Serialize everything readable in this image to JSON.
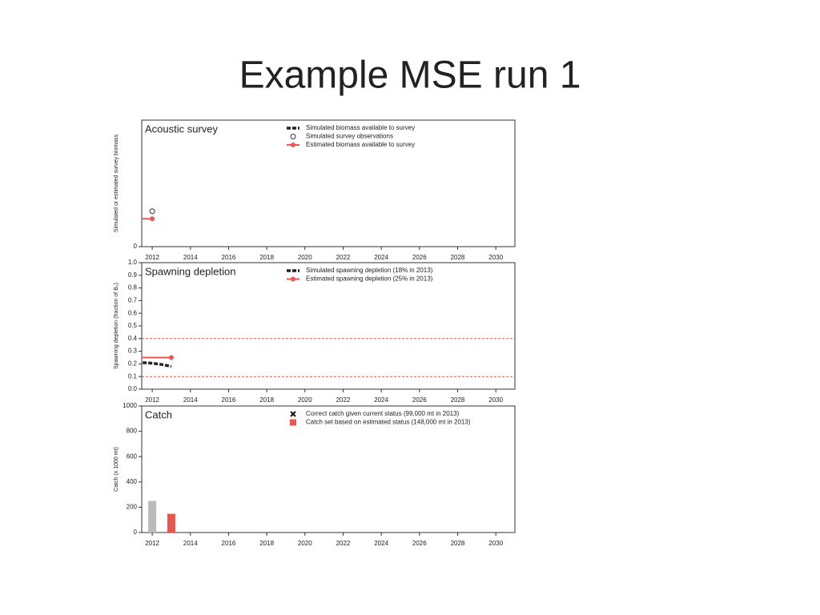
{
  "title": "Example MSE run 1",
  "chart_data": [
    {
      "type": "line",
      "title": "Acoustic survey",
      "ylabel": "Simulated or estimated survey biomass",
      "xlim": [
        2011.45,
        2031.0
      ],
      "xticks": [
        2012,
        2014,
        2016,
        2018,
        2020,
        2022,
        2024,
        2026,
        2028,
        2030
      ],
      "ylim": [
        0,
        1
      ],
      "yticks": [
        0
      ],
      "series": [
        {
          "name": "Simulated biomass available to survey",
          "style": "dashed-thick",
          "color": "#222222",
          "x": [
            2012
          ],
          "values": [
            0.24
          ]
        },
        {
          "name": "Simulated survey observations",
          "style": "open-point",
          "color": "#333333",
          "x": [
            2012
          ],
          "values": [
            0.28
          ]
        },
        {
          "name": "Estimated biomass available to survey",
          "style": "line-point",
          "color": "#e8584f",
          "x": [
            2011.45,
            2012
          ],
          "values": [
            0.22,
            0.22
          ]
        }
      ]
    },
    {
      "type": "line",
      "title": "Spawning depletion",
      "ylabel": "Spawning depletion (fraction of B₀)",
      "xlim": [
        2011.45,
        2031.0
      ],
      "xticks": [
        2012,
        2014,
        2016,
        2018,
        2020,
        2022,
        2024,
        2026,
        2028,
        2030
      ],
      "ylim": [
        0,
        1.0
      ],
      "yticks": [
        {
          "value": 0,
          "label": "0.0"
        },
        0.1,
        0.2,
        0.3,
        0.4,
        0.5,
        0.6,
        0.7,
        0.8,
        0.9,
        {
          "value": 1,
          "label": "1.0"
        }
      ],
      "hlines": [
        0.4,
        0.1
      ],
      "hline_color": "#e8584f",
      "series": [
        {
          "name": "Simulated spawning depletion (18% in 2013)",
          "style": "dashed-thick",
          "color": "#222222",
          "x": [
            2011.5,
            2012,
            2012.5,
            2013
          ],
          "values": [
            0.21,
            0.205,
            0.195,
            0.18
          ]
        },
        {
          "name": "Estimated spawning depletion (25% in 2013)",
          "style": "line-point",
          "color": "#e8584f",
          "x": [
            2011.45,
            2013
          ],
          "values": [
            0.25,
            0.25
          ]
        }
      ]
    },
    {
      "type": "bar",
      "title": "Catch",
      "ylabel": "Catch (x 1000 mt)",
      "xlim": [
        2011.45,
        2031.0
      ],
      "xticks": [
        2012,
        2014,
        2016,
        2018,
        2020,
        2022,
        2024,
        2026,
        2028,
        2030
      ],
      "ylim": [
        0,
        1000
      ],
      "yticks": [
        0,
        200,
        400,
        600,
        800,
        1000
      ],
      "series": [
        {
          "name": "Correct catch given current status (99,000 mt in 2013)",
          "style": "cross",
          "color": "#111111",
          "x": [
            2013
          ],
          "values": [
            99
          ]
        },
        {
          "name": "Catch set based on estimated status (148,000 mt in 2013)",
          "style": "bar",
          "color": "#e8584f",
          "x": [
            2013
          ],
          "values": [
            148
          ]
        },
        {
          "style": "bar",
          "color": "#bbbbbb",
          "x": [
            2012
          ],
          "values": [
            250
          ]
        }
      ]
    }
  ]
}
